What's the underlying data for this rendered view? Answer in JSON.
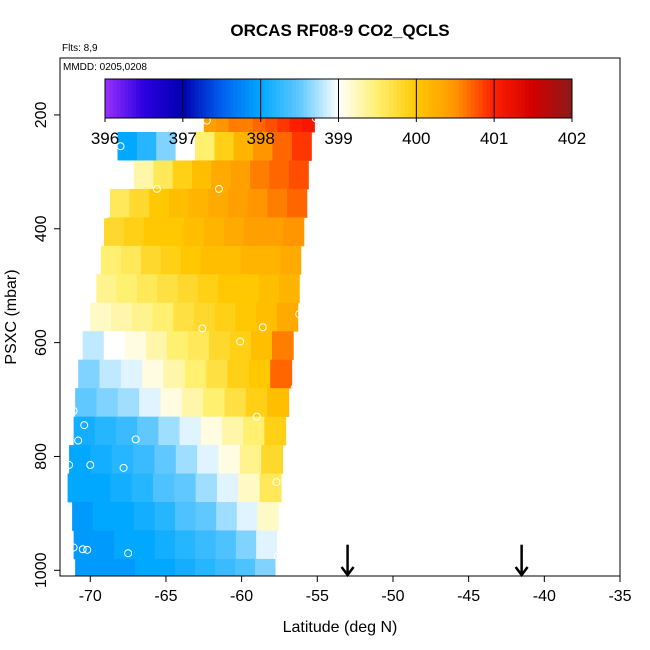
{
  "chart_data": {
    "type": "heatmap",
    "title": "ORCAS RF08-9 CO2_QCLS",
    "flights_label": "Flts: 8,9",
    "dates_label": "MMDD: 0205,0208",
    "xlabel": "Latitude (deg N)",
    "ylabel": "PSXC (mbar)",
    "xlim": [
      -72,
      -35
    ],
    "ylim": [
      1010,
      100
    ],
    "x_ticks": [
      -70,
      -65,
      -60,
      -55,
      -50,
      -45,
      -40,
      -35
    ],
    "y_ticks": [
      200,
      400,
      600,
      800,
      1000
    ],
    "grid": false,
    "colorbar": {
      "placement": "top-inside",
      "min": 396,
      "max": 402,
      "ticks": [
        396,
        397,
        398,
        399,
        400,
        401,
        402
      ],
      "stops": [
        {
          "v": 396.0,
          "c": "#9B30FF"
        },
        {
          "v": 396.5,
          "c": "#2C00E0"
        },
        {
          "v": 397.0,
          "c": "#0000B0"
        },
        {
          "v": 397.5,
          "c": "#0060F0"
        },
        {
          "v": 398.0,
          "c": "#00A8FF"
        },
        {
          "v": 398.5,
          "c": "#60C8FF"
        },
        {
          "v": 399.0,
          "c": "#FFFFFF"
        },
        {
          "v": 399.5,
          "c": "#FFF070"
        },
        {
          "v": 400.0,
          "c": "#FFC800"
        },
        {
          "v": 400.5,
          "c": "#FF9600"
        },
        {
          "v": 401.0,
          "c": "#FF1E00"
        },
        {
          "v": 401.5,
          "c": "#D20000"
        },
        {
          "v": 402.0,
          "c": "#8B1A1A"
        }
      ]
    },
    "profiles": [
      {
        "p0": 180,
        "p1": 230,
        "lat0": -62.5,
        "lat1": -55.2,
        "vals": [
          400.4,
          400.5,
          400.6,
          400.6,
          400.7,
          400.8,
          400.9,
          401.0,
          401.1
        ]
      },
      {
        "p0": 230,
        "p1": 280,
        "lat0": -68.2,
        "lat1": -55.4,
        "vals": [
          398.0,
          398.2,
          398.6,
          399.0,
          399.5,
          399.9,
          400.2,
          400.5,
          400.7,
          400.9
        ]
      },
      {
        "p0": 280,
        "p1": 330,
        "lat0": -68.4,
        "lat1": -55.6,
        "vals": [
          399.0,
          399.3,
          399.6,
          399.9,
          400.1,
          400.3,
          400.4,
          400.6,
          400.7,
          400.8
        ]
      },
      {
        "p0": 330,
        "p1": 380,
        "lat0": -68.7,
        "lat1": -55.7,
        "vals": [
          399.6,
          399.8,
          400.0,
          400.1,
          400.2,
          400.3,
          400.4,
          400.5,
          400.6,
          400.7
        ]
      },
      {
        "p0": 380,
        "p1": 430,
        "lat0": -69.1,
        "lat1": -55.9,
        "vals": [
          399.8,
          399.9,
          400.0,
          400.0,
          400.1,
          400.2,
          400.3,
          400.4,
          400.4,
          400.5
        ]
      },
      {
        "p0": 430,
        "p1": 480,
        "lat0": -69.3,
        "lat1": -56.1,
        "vals": [
          399.5,
          399.6,
          399.8,
          399.9,
          400.0,
          400.1,
          400.1,
          400.2,
          400.2,
          400.3
        ]
      },
      {
        "p0": 480,
        "p1": 530,
        "lat0": -69.6,
        "lat1": -56.2,
        "vals": [
          399.4,
          399.5,
          399.6,
          399.7,
          399.8,
          399.9,
          400.0,
          400.0,
          400.1,
          400.2
        ]
      },
      {
        "p0": 530,
        "p1": 580,
        "lat0": -70.0,
        "lat1": -56.3,
        "vals": [
          399.2,
          399.3,
          399.4,
          399.5,
          399.7,
          399.8,
          399.9,
          400.0,
          400.1,
          400.3
        ]
      },
      {
        "p0": 580,
        "p1": 630,
        "lat0": -70.5,
        "lat1": -56.6,
        "vals": [
          398.8,
          399.0,
          399.1,
          399.3,
          399.5,
          399.6,
          399.8,
          399.9,
          400.1,
          400.6
        ]
      },
      {
        "p0": 630,
        "p1": 680,
        "lat0": -70.8,
        "lat1": -56.7,
        "vals": [
          398.6,
          398.8,
          398.9,
          399.1,
          399.3,
          399.5,
          399.7,
          399.9,
          400.0,
          400.7
        ]
      },
      {
        "p0": 680,
        "p1": 730,
        "lat0": -71.0,
        "lat1": -56.9,
        "vals": [
          398.5,
          398.6,
          398.7,
          398.9,
          399.1,
          399.3,
          399.5,
          399.7,
          399.9,
          400.1
        ]
      },
      {
        "p0": 730,
        "p1": 780,
        "lat0": -71.1,
        "lat1": -57.1,
        "vals": [
          398.1,
          398.2,
          398.3,
          398.5,
          398.7,
          398.9,
          399.1,
          399.3,
          399.5,
          399.9
        ]
      },
      {
        "p0": 780,
        "p1": 830,
        "lat0": -71.4,
        "lat1": -57.3,
        "vals": [
          398.0,
          398.1,
          398.2,
          398.3,
          398.5,
          398.7,
          398.9,
          399.1,
          399.4,
          399.8
        ]
      },
      {
        "p0": 830,
        "p1": 880,
        "lat0": -71.5,
        "lat1": -57.4,
        "vals": [
          398.0,
          398.0,
          398.1,
          398.2,
          398.4,
          398.5,
          398.7,
          398.9,
          399.2,
          399.6
        ]
      },
      {
        "p0": 880,
        "p1": 930,
        "lat0": -71.2,
        "lat1": -57.6,
        "vals": [
          397.9,
          398.0,
          398.0,
          398.1,
          398.2,
          398.4,
          398.5,
          398.7,
          398.9,
          399.2
        ]
      },
      {
        "p0": 930,
        "p1": 980,
        "lat0": -71.1,
        "lat1": -57.7,
        "vals": [
          397.9,
          397.9,
          398.0,
          398.0,
          398.1,
          398.2,
          398.3,
          398.4,
          398.6,
          398.9
        ]
      },
      {
        "p0": 980,
        "p1": 1010,
        "lat0": -71.0,
        "lat1": -57.8,
        "vals": [
          397.9,
          397.9,
          397.9,
          398.0,
          398.0,
          398.1,
          398.2,
          398.3,
          398.4,
          398.6
        ]
      }
    ],
    "points": [
      {
        "lat": -62.3,
        "p": 210
      },
      {
        "lat": -57.7,
        "p": 186
      },
      {
        "lat": -55.1,
        "p": 206
      },
      {
        "lat": -67.8,
        "p": 215
      },
      {
        "lat": -68.0,
        "p": 255
      },
      {
        "lat": -68.3,
        "p": 300
      },
      {
        "lat": -65.6,
        "p": 330
      },
      {
        "lat": -61.5,
        "p": 330
      },
      {
        "lat": -69.0,
        "p": 375
      },
      {
        "lat": -56.2,
        "p": 550
      },
      {
        "lat": -62.6,
        "p": 575
      },
      {
        "lat": -58.6,
        "p": 573
      },
      {
        "lat": -60.1,
        "p": 598
      },
      {
        "lat": -71.1,
        "p": 720
      },
      {
        "lat": -70.4,
        "p": 745
      },
      {
        "lat": -56.5,
        "p": 680
      },
      {
        "lat": -59.0,
        "p": 730
      },
      {
        "lat": -67.0,
        "p": 770
      },
      {
        "lat": -70.8,
        "p": 772
      },
      {
        "lat": -70.0,
        "p": 815
      },
      {
        "lat": -67.8,
        "p": 820
      },
      {
        "lat": -71.4,
        "p": 815
      },
      {
        "lat": -57.7,
        "p": 845
      },
      {
        "lat": -71.1,
        "p": 960
      },
      {
        "lat": -70.5,
        "p": 963
      },
      {
        "lat": -70.2,
        "p": 964
      },
      {
        "lat": -67.5,
        "p": 970
      },
      {
        "lat": -57.6,
        "p": 975
      }
    ],
    "arrows": [
      {
        "lat": -53.0,
        "p_top": 955,
        "p_tip": 1010
      },
      {
        "lat": -41.5,
        "p_top": 955,
        "p_tip": 1010
      }
    ]
  }
}
